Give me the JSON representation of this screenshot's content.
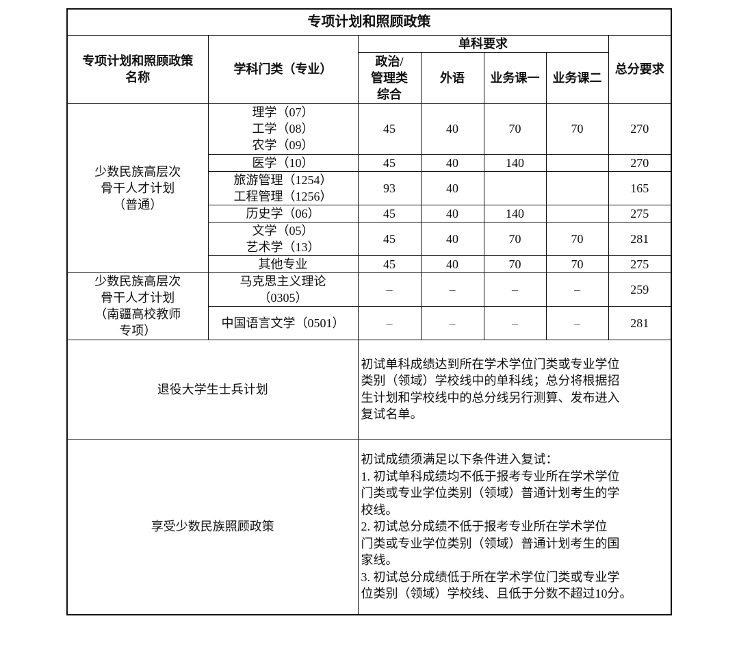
{
  "title": "专项计划和照顾政策",
  "headers": {
    "plan_name": "专项计划和照顾政策\n名称",
    "subject": "学科门类（专业）",
    "single_req": "单科要求",
    "politics": "政治/\n管理类\n综合",
    "foreign": "外语",
    "course1": "业务课一",
    "course2": "业务课二",
    "total": "总分要求"
  },
  "plan1": {
    "name": "少数民族高层次\n骨干人才计划\n（普通）",
    "rows": [
      {
        "subject": "理学（07）\n工学（08）\n农学（09）",
        "politics": "45",
        "foreign": "40",
        "c1": "70",
        "c2": "70",
        "total": "270"
      },
      {
        "subject": "医学（10）",
        "politics": "45",
        "foreign": "40",
        "c1": "140",
        "c2": "",
        "total": "270"
      },
      {
        "subject": "旅游管理（1254）\n工程管理（1256）",
        "politics": "93",
        "foreign": "40",
        "c1": "",
        "c2": "",
        "total": "165"
      },
      {
        "subject": "历史学（06）",
        "politics": "45",
        "foreign": "40",
        "c1": "140",
        "c2": "",
        "total": "275"
      },
      {
        "subject": "文学（05）\n艺术学（13）",
        "politics": "45",
        "foreign": "40",
        "c1": "70",
        "c2": "70",
        "total": "281"
      },
      {
        "subject": "其他专业",
        "politics": "45",
        "foreign": "40",
        "c1": "70",
        "c2": "70",
        "total": "275"
      }
    ]
  },
  "plan2": {
    "name": "少数民族高层次\n骨干人才计划\n（南疆高校教师\n专项）",
    "rows": [
      {
        "subject": "马克思主义理论\n（0305）",
        "politics": "–",
        "foreign": "–",
        "c1": "–",
        "c2": "–",
        "total": "259"
      },
      {
        "subject": "中国语言文学（0501）",
        "politics": "–",
        "foreign": "–",
        "c1": "–",
        "c2": "–",
        "total": "281"
      }
    ]
  },
  "plan3": {
    "name": "退役大学生士兵计划",
    "desc": "初试单科成绩达到所在学术学位门类或专业学位\n类别（领域）学校线中的单科线；总分将根据招\n生计划和学校线中的总分线另行测算、发布进入\n复试名单。"
  },
  "plan4": {
    "name": "享受少数民族照顾政策",
    "desc": "初试成绩须满足以下条件进入复试：\n1. 初试单科成绩均不低于报考专业所在学术学位\n门类或专业学位类别（领域）普通计划考生的学\n校线。\n2. 初试总分成绩不低于报考专业所在学术学位\n门类或专业学位类别（领域）普通计划考生的国\n家线。\n3. 初试总分成绩低于所在学术学位门类或专业学\n位类别（领域）学校线、且低于分数不超过10分。"
  }
}
